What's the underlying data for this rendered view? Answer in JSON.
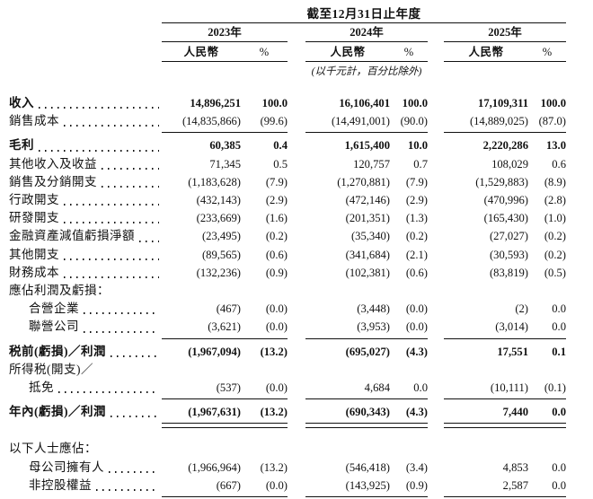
{
  "colors": {
    "ink": "#111111",
    "background": "#ffffff"
  },
  "table": {
    "title": "截至12月31日止年度",
    "unit_note": "(以千元計，百分比除外)",
    "years": [
      {
        "label": "2023年",
        "rmb": "人民幣",
        "pct": "%"
      },
      {
        "label": "2024年",
        "rmb": "人民幣",
        "pct": "%"
      },
      {
        "label": "2025年",
        "rmb": "人民幣",
        "pct": "%"
      }
    ],
    "rows": [
      {
        "label": "收入",
        "v": [
          "14,896,251",
          "100.0",
          "16,106,401",
          "100.0",
          "17,109,311",
          "100.0"
        ]
      },
      {
        "label": "銷售成本",
        "v": [
          "(14,835,866)",
          "(99.6)",
          "(14,491,001)",
          "(90.0)",
          "(14,889,025)",
          "(87.0)"
        ]
      },
      {
        "label": "毛利",
        "v": [
          "60,385",
          "0.4",
          "1,615,400",
          "10.0",
          "2,220,286",
          "13.0"
        ]
      },
      {
        "label": "其他收入及收益",
        "v": [
          "71,345",
          "0.5",
          "120,757",
          "0.7",
          "108,029",
          "0.6"
        ]
      },
      {
        "label": "銷售及分銷開支",
        "v": [
          "(1,183,628)",
          "(7.9)",
          "(1,270,881)",
          "(7.9)",
          "(1,529,883)",
          "(8.9)"
        ]
      },
      {
        "label": "行政開支",
        "v": [
          "(432,143)",
          "(2.9)",
          "(472,146)",
          "(2.9)",
          "(470,996)",
          "(2.8)"
        ]
      },
      {
        "label": "研發開支",
        "v": [
          "(233,669)",
          "(1.6)",
          "(201,351)",
          "(1.3)",
          "(165,430)",
          "(1.0)"
        ]
      },
      {
        "label": "金融資產減值虧損淨額",
        "v": [
          "(23,495)",
          "(0.2)",
          "(35,340)",
          "(0.2)",
          "(27,027)",
          "(0.2)"
        ]
      },
      {
        "label": "其他開支",
        "v": [
          "(89,565)",
          "(0.6)",
          "(341,684)",
          "(2.1)",
          "(30,593)",
          "(0.2)"
        ]
      },
      {
        "label": "財務成本",
        "v": [
          "(132,236)",
          "(0.9)",
          "(102,381)",
          "(0.6)",
          "(83,819)",
          "(0.5)"
        ]
      },
      {
        "label": "應佔利潤及虧損："
      },
      {
        "label": "合營企業",
        "v": [
          "(467)",
          "(0.0)",
          "(3,448)",
          "(0.0)",
          "(2)",
          "0.0"
        ]
      },
      {
        "label": "聯營公司",
        "v": [
          "(3,621)",
          "(0.0)",
          "(3,953)",
          "(0.0)",
          "(3,014)",
          "0.0"
        ]
      },
      {
        "label": "税前(虧損)／利潤",
        "v": [
          "(1,967,094)",
          "(13.2)",
          "(695,027)",
          "(4.3)",
          "17,551",
          "0.1"
        ]
      },
      {
        "label": "所得税(開支)／"
      },
      {
        "label": "抵免",
        "v": [
          "(537)",
          "(0.0)",
          "4,684",
          "0.0",
          "(10,111)",
          "(0.1)"
        ]
      },
      {
        "label": "年內(虧損)／利潤",
        "v": [
          "(1,967,631)",
          "(13.2)",
          "(690,343)",
          "(4.3)",
          "7,440",
          "0.0"
        ]
      },
      {
        "label": "以下人士應佔："
      },
      {
        "label": "母公司擁有人",
        "v": [
          "(1,966,964)",
          "(13.2)",
          "(546,418)",
          "(3.4)",
          "4,853",
          "0.0"
        ]
      },
      {
        "label": "非控股權益",
        "v": [
          "(667)",
          "(0.0)",
          "(143,925)",
          "(0.9)",
          "2,587",
          "0.0"
        ]
      }
    ]
  }
}
